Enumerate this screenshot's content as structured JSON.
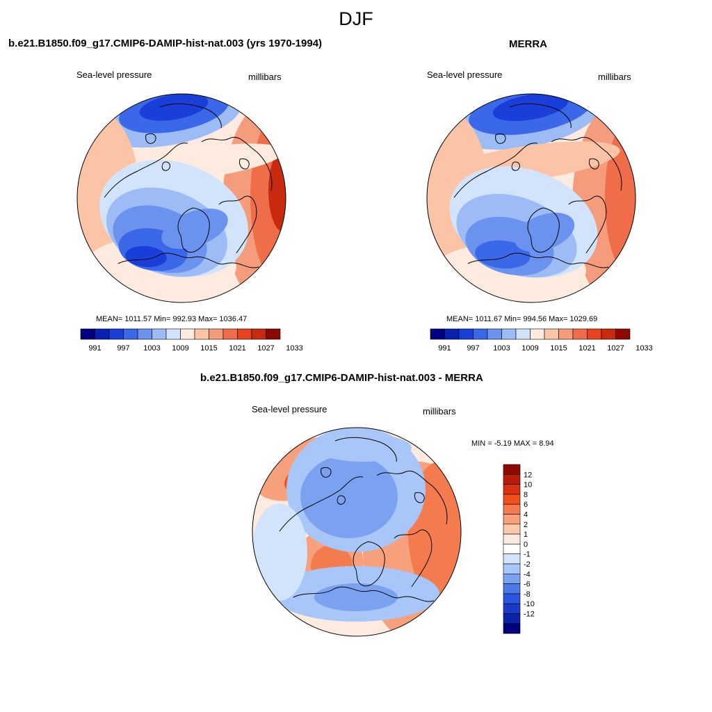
{
  "title": "DJF",
  "panels": [
    {
      "title": "b.e21.B1850.f09_g17.CMIP6-DAMIP-hist-nat.003 (yrs 1970-1994)",
      "left_label": "Sea-level pressure",
      "right_label": "millibars",
      "stats": "MEAN= 1011.57  Min= 992.93  Max= 1036.47"
    },
    {
      "title": "MERRA",
      "left_label": "Sea-level pressure",
      "right_label": "millibars",
      "stats": "MEAN= 1011.67  Min= 994.56  Max= 1029.69"
    },
    {
      "title": "b.e21.B1850.f09_g17.CMIP6-DAMIP-hist-nat.003 - MERRA",
      "left_label": "Sea-level pressure",
      "right_label": "millibars",
      "stats": "MIN =  -5.19 MAX =   8.94"
    }
  ],
  "colorbar_abs": {
    "colors": [
      "#00007f",
      "#0a20b0",
      "#1a3fd8",
      "#3a68e8",
      "#6a92ee",
      "#9dbcf5",
      "#d2e4fb",
      "#fdebe0",
      "#fbc4a6",
      "#f49c7c",
      "#f06d4a",
      "#e8431e",
      "#c82a10",
      "#8e0a00"
    ],
    "ticks": [
      "991",
      "997",
      "1003",
      "1009",
      "1015",
      "1021",
      "1027",
      "1033"
    ]
  },
  "colorbar_diff": {
    "colors": [
      "#8e0a00",
      "#b71c0a",
      "#d83210",
      "#f24f1c",
      "#f47b4e",
      "#f6a07c",
      "#fbc9ab",
      "#fdebe0",
      "#ffffff",
      "#d2e4fb",
      "#a8c6f7",
      "#7aa2f0",
      "#4c79e6",
      "#2a55e0",
      "#1a3bc8",
      "#0a24a8",
      "#00007f"
    ],
    "ticks": [
      "12",
      "10",
      "8",
      "6",
      "4",
      "2",
      "1",
      "0",
      "-1",
      "-2",
      "-4",
      "-6",
      "-8",
      "-10",
      "-12"
    ]
  },
  "chart_data": [
    {
      "type": "heatmap",
      "title": "b.e21.B1850.f09_g17.CMIP6-DAMIP-hist-nat.003 (yrs 1970-1994)",
      "variable": "Sea-level pressure",
      "units": "millibars",
      "mean": 1011.57,
      "min": 992.93,
      "max": 1036.47,
      "contour_levels": [
        991,
        994,
        997,
        1000,
        1003,
        1006,
        1009,
        1012,
        1015,
        1018,
        1021,
        1024,
        1027,
        1030,
        1033
      ]
    },
    {
      "type": "heatmap",
      "title": "MERRA",
      "variable": "Sea-level pressure",
      "units": "millibars",
      "mean": 1011.67,
      "min": 994.56,
      "max": 1029.69,
      "contour_levels": [
        991,
        994,
        997,
        1000,
        1003,
        1006,
        1009,
        1012,
        1015,
        1018,
        1021,
        1024,
        1027,
        1030,
        1033
      ]
    },
    {
      "type": "heatmap",
      "title": "b.e21.B1850.f09_g17.CMIP6-DAMIP-hist-nat.003 - MERRA",
      "variable": "Sea-level pressure",
      "units": "millibars",
      "min": -5.19,
      "max": 8.94,
      "contour_levels": [
        -12,
        -10,
        -8,
        -6,
        -4,
        -2,
        -1,
        0,
        1,
        2,
        4,
        6,
        8,
        10,
        12
      ]
    }
  ]
}
